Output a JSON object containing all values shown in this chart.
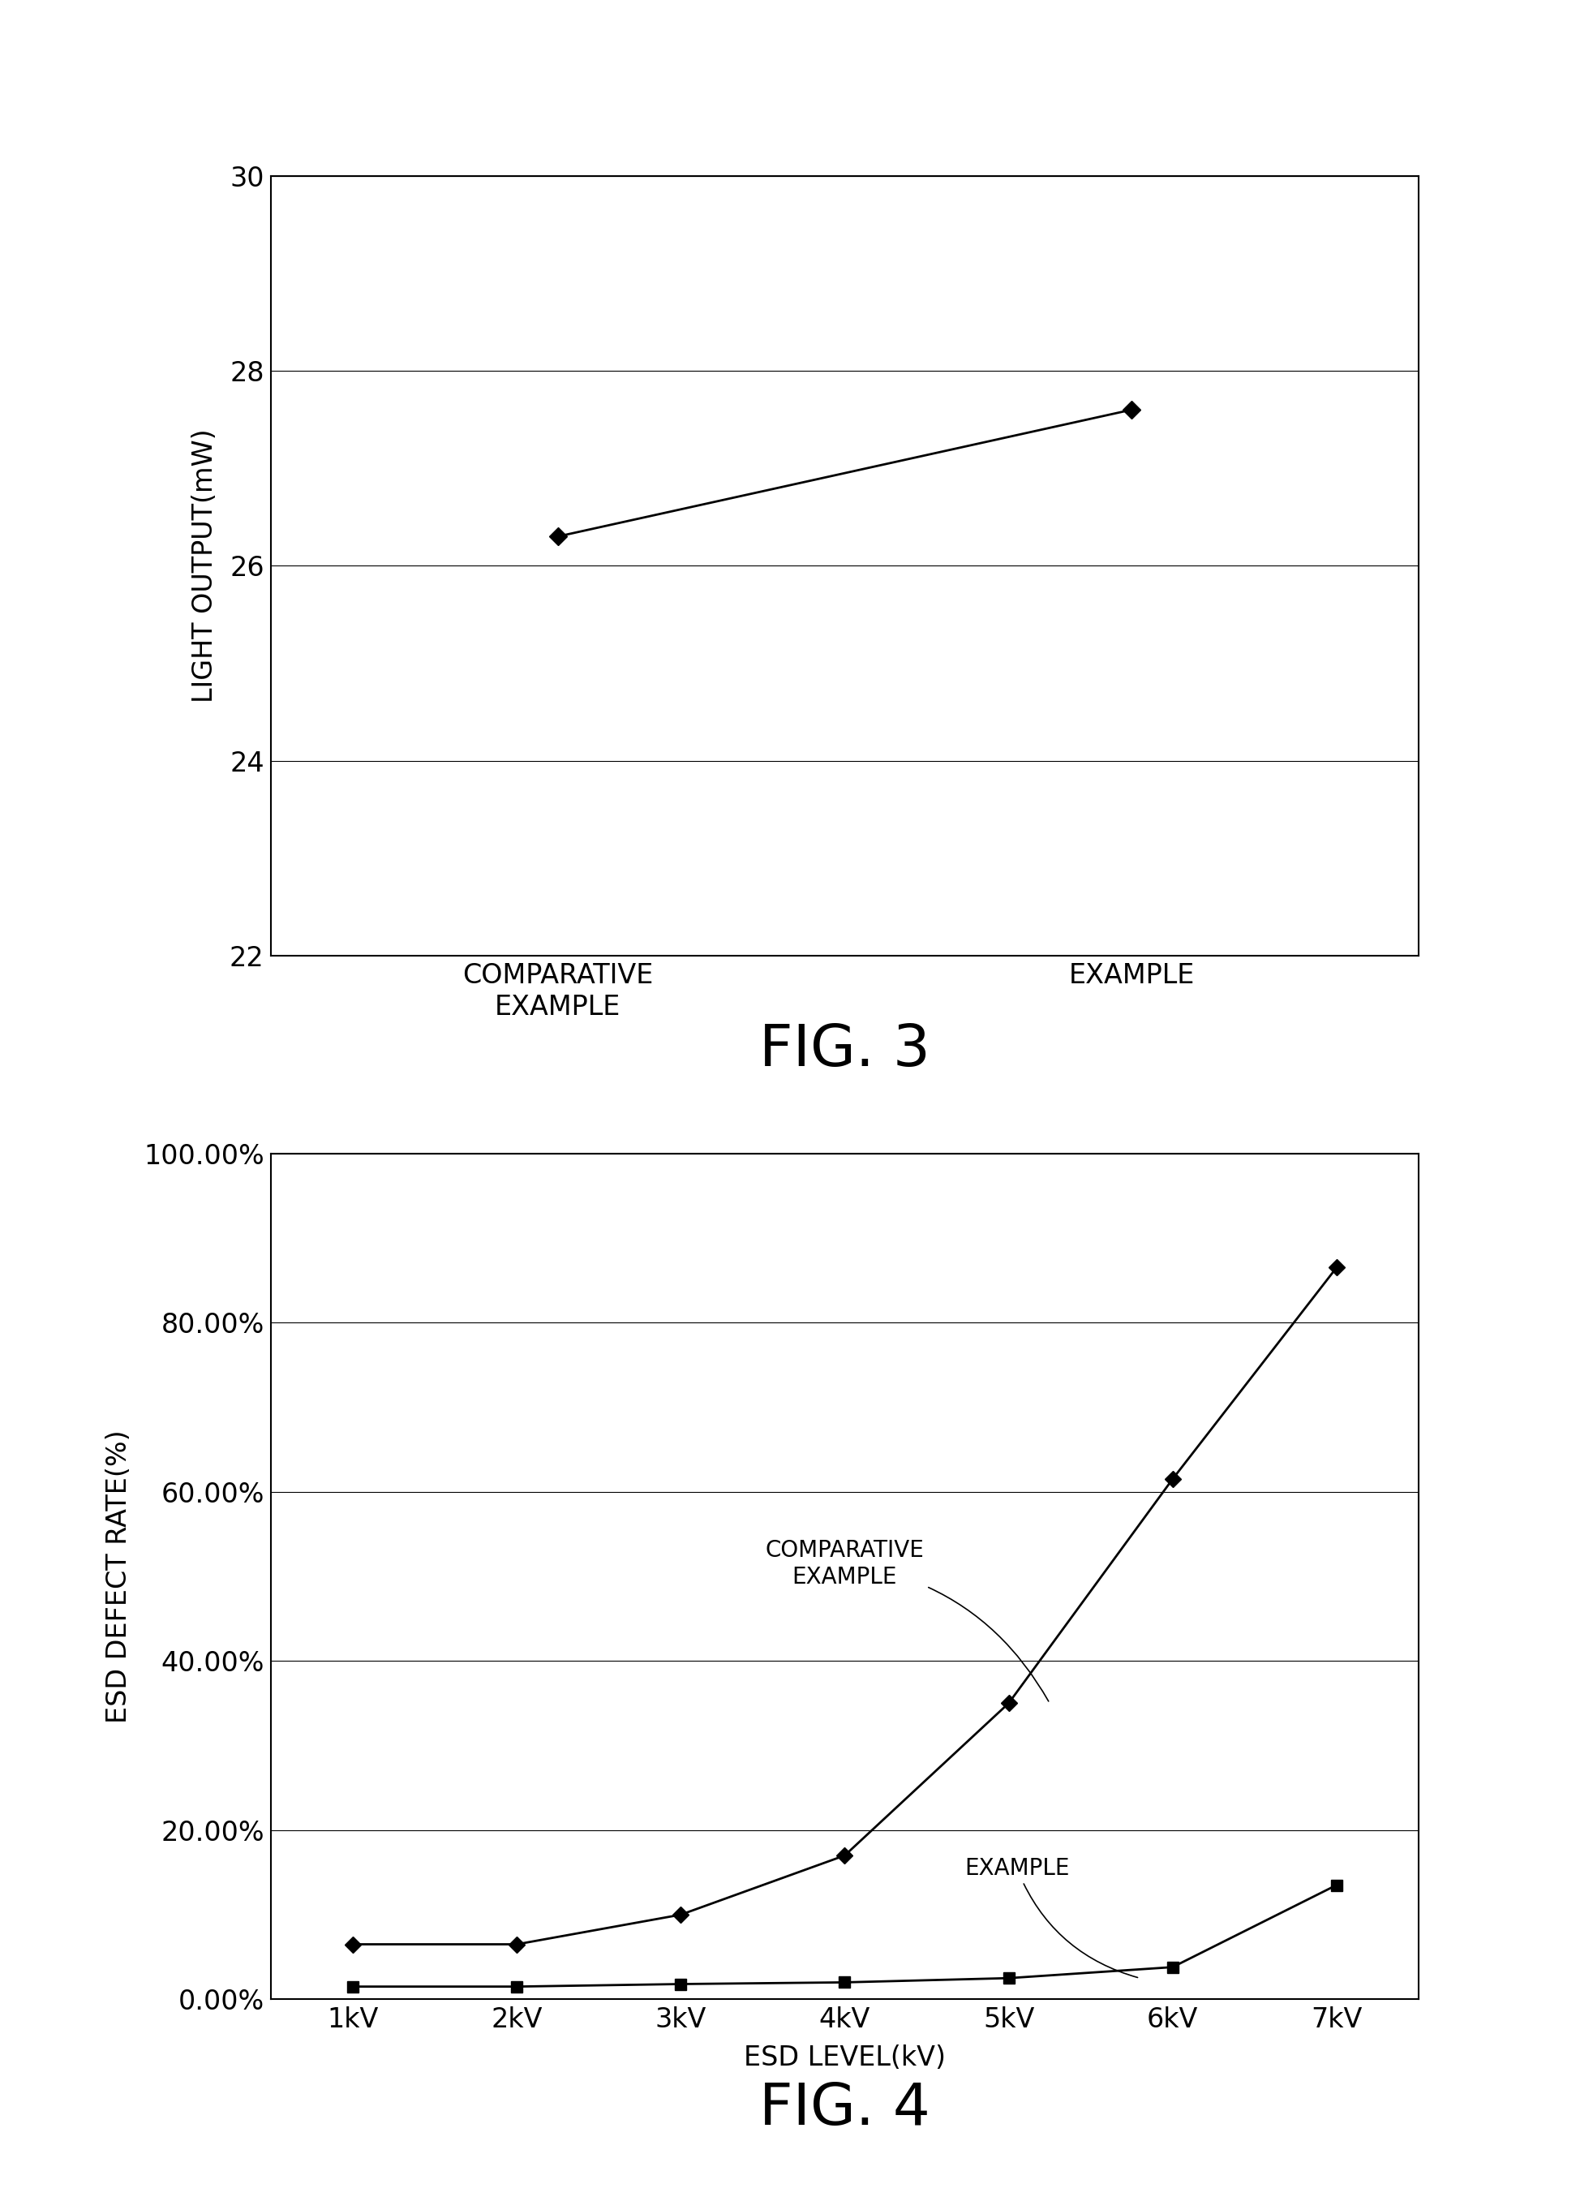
{
  "fig3": {
    "x_categories": [
      "COMPARATIVE\nEXAMPLE",
      "EXAMPLE"
    ],
    "y_values": [
      26.3,
      27.6
    ],
    "ylabel": "LIGHT OUTPUT(mW)",
    "ylim": [
      22,
      30
    ],
    "yticks": [
      22,
      24,
      26,
      28,
      30
    ],
    "title": "FIG. 3",
    "marker": "D",
    "markersize": 11,
    "color": "#000000"
  },
  "fig4": {
    "x_labels": [
      "1kV",
      "2kV",
      "3kV",
      "4kV",
      "5kV",
      "6kV",
      "7kV"
    ],
    "x_values": [
      1,
      2,
      3,
      4,
      5,
      6,
      7
    ],
    "comparative_y": [
      0.065,
      0.065,
      0.1,
      0.17,
      0.35,
      0.615,
      0.865
    ],
    "example_y": [
      0.015,
      0.015,
      0.018,
      0.02,
      0.025,
      0.038,
      0.135
    ],
    "ylabel": "ESD DEFECT RATE(%)",
    "xlabel": "ESD LEVEL(kV)",
    "ylim": [
      0,
      1.0
    ],
    "ytick_labels": [
      "0.00%",
      "20.00%",
      "40.00%",
      "60.00%",
      "80.00%",
      "100.00%"
    ],
    "ytick_vals": [
      0.0,
      0.2,
      0.4,
      0.6,
      0.8,
      1.0
    ],
    "title": "FIG. 4",
    "marker_comp": "D",
    "marker_ex": "s",
    "markersize": 10,
    "color": "#000000"
  }
}
